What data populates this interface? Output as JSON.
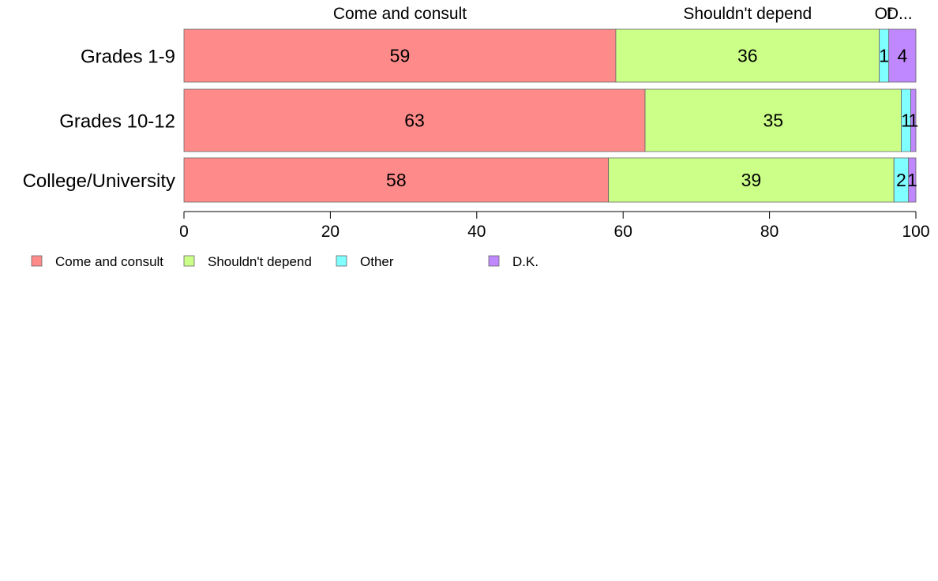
{
  "chart_data": {
    "type": "bar",
    "orientation": "horizontal",
    "stacked": true,
    "categories": [
      "Grades 1-9",
      "Grades 10-12",
      "College/University"
    ],
    "series": [
      {
        "name": "Come and consult",
        "color": "#ff8a8a",
        "values": [
          59,
          63,
          58
        ],
        "labels": [
          "59",
          "63",
          "58"
        ]
      },
      {
        "name": "Shouldn't depend",
        "color": "#ccff88",
        "values": [
          36,
          35,
          39
        ],
        "labels": [
          "36",
          "35",
          "39"
        ]
      },
      {
        "name": "Other",
        "color": "#7fffff",
        "values": [
          1.3,
          1.3,
          2
        ],
        "labels": [
          "1",
          "1",
          "2"
        ]
      },
      {
        "name": "D.K.",
        "color": "#bf88ff",
        "values": [
          4,
          1,
          1
        ],
        "labels": [
          "4",
          "1",
          "1"
        ]
      }
    ],
    "top_labels": [
      "Come and consult",
      "Shouldn't depend",
      "Ot",
      "D..."
    ],
    "xlim": [
      0,
      100
    ],
    "xticks": [
      0,
      20,
      40,
      60,
      80,
      100
    ],
    "grid": false,
    "legend_position": "bottom-left"
  }
}
